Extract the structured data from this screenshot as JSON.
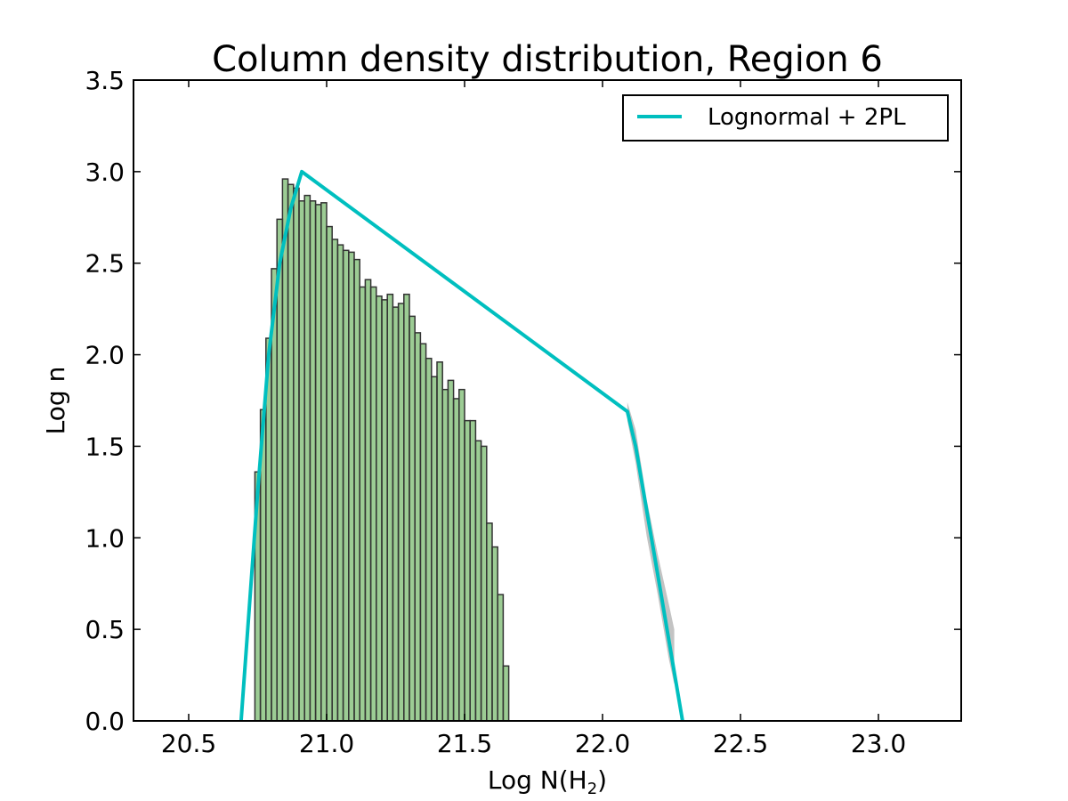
{
  "chart_data": {
    "type": "bar",
    "title": "Column density distribution, Region 6",
    "xlabel": "Log N(H",
    "xlabel_sub": "2",
    "xlabel_end": ")",
    "ylabel": "Log n",
    "xlim": [
      20.3,
      23.3
    ],
    "ylim": [
      0.0,
      3.5
    ],
    "grid": false,
    "legend_position": "top-right",
    "x_ticks": [
      20.5,
      21.0,
      21.5,
      22.0,
      22.5,
      23.0
    ],
    "x_tick_labels": [
      "20.5",
      "21.0",
      "21.5",
      "22.0",
      "22.5",
      "23.0"
    ],
    "y_ticks": [
      0.0,
      0.5,
      1.0,
      1.5,
      2.0,
      2.5,
      3.0,
      3.5
    ],
    "y_tick_labels": [
      "0.0",
      "0.5",
      "1.0",
      "1.5",
      "2.0",
      "2.5",
      "3.0",
      "3.5"
    ],
    "histogram": {
      "bin_start": 20.74,
      "bin_width": 0.02,
      "values": [
        1.36,
        1.7,
        2.09,
        2.47,
        2.74,
        2.96,
        2.93,
        2.91,
        2.84,
        2.87,
        2.84,
        2.82,
        2.83,
        2.7,
        2.63,
        2.6,
        2.57,
        2.56,
        2.52,
        2.37,
        2.41,
        2.37,
        2.32,
        2.3,
        2.33,
        2.26,
        2.28,
        2.33,
        2.21,
        2.12,
        2.06,
        1.98,
        1.88,
        1.96,
        1.81,
        1.86,
        1.76,
        1.81,
        1.64,
        1.64,
        1.53,
        1.5,
        1.08,
        0.95,
        0.69,
        0.3
      ],
      "fill_color": "#3a9a2a",
      "edge_color": "#333333"
    },
    "series": [
      {
        "name": "Lognormal + 2PL",
        "color": "#00bfbf",
        "x": [
          20.69,
          20.75,
          20.79,
          20.83,
          20.87,
          20.91,
          22.09,
          22.12,
          22.2,
          22.29
        ],
        "y": [
          0.0,
          1.25,
          2.0,
          2.5,
          2.8,
          3.0,
          1.69,
          1.5,
          0.8,
          0.0
        ]
      }
    ],
    "error_band": {
      "color": "#b8b8b8",
      "x": [
        22.09,
        22.12,
        22.16,
        22.2,
        22.24,
        22.26
      ],
      "upper": [
        1.74,
        1.59,
        1.21,
        0.91,
        0.64,
        0.5
      ],
      "lower": [
        1.64,
        1.41,
        1.01,
        0.69,
        0.34,
        0.2
      ]
    }
  }
}
